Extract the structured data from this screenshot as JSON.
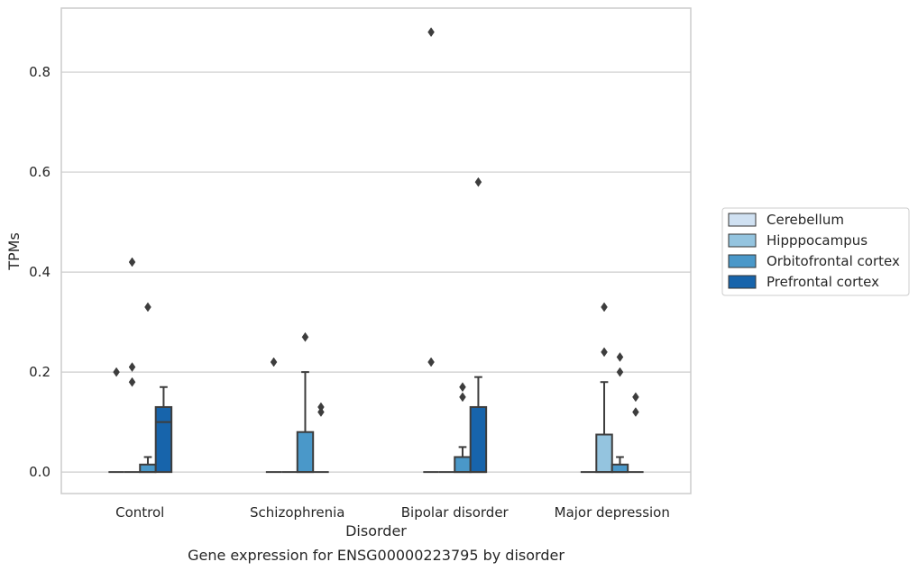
{
  "chart_data": {
    "type": "box",
    "title": "Gene expression for ENSG00000223795 by disorder",
    "xlabel": "Disorder",
    "ylabel": "TPMs",
    "ylim": [
      -0.043,
      0.928
    ],
    "yticks": [
      0.0,
      0.2,
      0.4,
      0.6,
      0.8
    ],
    "ytick_labels": [
      "0.0",
      "0.2",
      "0.4",
      "0.6",
      "0.8"
    ],
    "categories": [
      "Control",
      "Schizophrenia",
      "Bipolar disorder",
      "Major depression"
    ],
    "grid": "horizontal",
    "legend_position": "right",
    "series": [
      {
        "name": "Cerebellum",
        "color": "#d0e1f2",
        "boxes": [
          {
            "min": 0,
            "q1": 0,
            "median": 0,
            "q3": 0,
            "max": 0,
            "outliers": [
              0.2
            ]
          },
          {
            "min": 0,
            "q1": 0,
            "median": 0,
            "q3": 0,
            "max": 0,
            "outliers": [
              0.22
            ]
          },
          {
            "min": 0,
            "q1": 0,
            "median": 0,
            "q3": 0,
            "max": 0,
            "outliers": [
              0.88,
              0.22
            ]
          },
          {
            "min": 0,
            "q1": 0,
            "median": 0,
            "q3": 0,
            "max": 0,
            "outliers": []
          }
        ]
      },
      {
        "name": "Hipppocampus",
        "color": "#94c4df",
        "boxes": [
          {
            "min": 0,
            "q1": 0,
            "median": 0,
            "q3": 0,
            "max": 0,
            "outliers": [
              0.42,
              0.21,
              0.18
            ]
          },
          {
            "min": 0,
            "q1": 0,
            "median": 0,
            "q3": 0,
            "max": 0,
            "outliers": []
          },
          {
            "min": 0,
            "q1": 0,
            "median": 0,
            "q3": 0,
            "max": 0,
            "outliers": []
          },
          {
            "min": 0,
            "q1": 0,
            "median": 0,
            "q3": 0.075,
            "max": 0.18,
            "outliers": [
              0.33,
              0.24
            ]
          }
        ]
      },
      {
        "name": "Orbitofrontal cortex",
        "color": "#4a98c9",
        "boxes": [
          {
            "min": 0,
            "q1": 0,
            "median": 0,
            "q3": 0.015,
            "max": 0.03,
            "outliers": [
              0.33
            ]
          },
          {
            "min": 0,
            "q1": 0,
            "median": 0,
            "q3": 0.08,
            "max": 0.2,
            "outliers": [
              0.27
            ]
          },
          {
            "min": 0,
            "q1": 0,
            "median": 0,
            "q3": 0.03,
            "max": 0.05,
            "outliers": [
              0.17,
              0.15
            ]
          },
          {
            "min": 0,
            "q1": 0,
            "median": 0,
            "q3": 0.015,
            "max": 0.03,
            "outliers": [
              0.23,
              0.2
            ]
          }
        ]
      },
      {
        "name": "Prefrontal cortex",
        "color": "#1764ab",
        "boxes": [
          {
            "min": 0,
            "q1": 0,
            "median": 0.1,
            "q3": 0.13,
            "max": 0.17,
            "outliers": []
          },
          {
            "min": 0,
            "q1": 0,
            "median": 0,
            "q3": 0,
            "max": 0,
            "outliers": [
              0.13,
              0.12
            ]
          },
          {
            "min": 0,
            "q1": 0,
            "median": 0,
            "q3": 0.13,
            "max": 0.19,
            "outliers": [
              0.58
            ]
          },
          {
            "min": 0,
            "q1": 0,
            "median": 0,
            "q3": 0,
            "max": 0,
            "outliers": [
              0.15,
              0.12
            ]
          }
        ]
      }
    ]
  }
}
